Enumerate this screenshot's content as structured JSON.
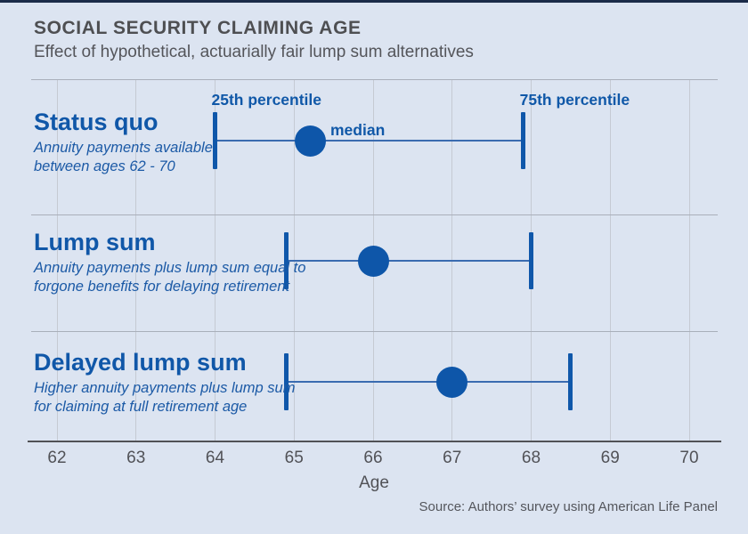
{
  "header": {
    "title": "SOCIAL SECURITY CLAIMING AGE",
    "subtitle": "Effect of hypothetical, actuarially fair lump sum alternatives"
  },
  "footer": {
    "source": "Source: Authors’ survey using American Life Panel"
  },
  "colors": {
    "background": "#dce4f1",
    "accent_blue": "#0f57aa",
    "title_gray": "#4e4f52",
    "axis_gray": "#515257",
    "gridline_gray": "#c5cad3",
    "top_bar_navy": "#1b2b49"
  },
  "chart_data": {
    "type": "dot-range",
    "title": "SOCIAL SECURITY CLAIMING AGE",
    "subtitle": "Effect of hypothetical, actuarially fair lump sum alternatives",
    "xlabel": "Age",
    "xticks": [
      62,
      63,
      64,
      65,
      66,
      67,
      68,
      69,
      70
    ],
    "xlim": [
      61.67,
      70.36
    ],
    "grid": true,
    "legend_position": "inline-annotations",
    "point_labels": {
      "p25": "25th percentile",
      "median": "median",
      "p75": "75th percentile"
    },
    "rows": [
      {
        "label": "Status quo",
        "description_line1": "Annuity payments available",
        "description_line2": "between ages 62 - 70",
        "p25": 64.0,
        "median": 65.2,
        "p75": 67.9
      },
      {
        "label": "Lump sum",
        "description_line1": "Annuity payments plus lump sum equal to",
        "description_line2": "forgone benefits for delaying retirement",
        "p25": 64.9,
        "median": 66.0,
        "p75": 68.0
      },
      {
        "label": "Delayed lump sum",
        "description_line1": "Higher annuity payments plus lump sum",
        "description_line2": "for claiming at full retirement age",
        "p25": 64.9,
        "median": 67.0,
        "p75": 68.5
      }
    ]
  }
}
